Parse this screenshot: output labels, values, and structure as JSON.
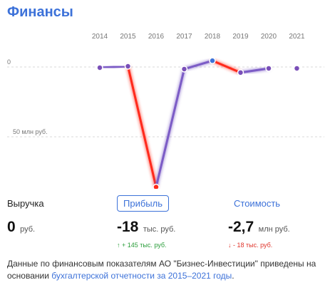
{
  "header": {
    "title": "Финансы"
  },
  "chart_data": {
    "type": "line",
    "x": [
      "2014",
      "2015",
      "2016",
      "2017",
      "2018",
      "2019",
      "2020",
      "2021"
    ],
    "series": [
      {
        "values": [
          -0.5,
          0.5,
          -86,
          -1.5,
          4.5,
          -4,
          -1,
          -1
        ]
      }
    ],
    "y_tick_labels": [
      "0",
      "50 млн руб."
    ],
    "ylim": [
      -90,
      10
    ],
    "grid": true,
    "colors": {
      "marker": "#7a4fb8",
      "decline": "#ff2a1a",
      "growth": "#7b5cc6",
      "top_marker": "#3d72d9"
    }
  },
  "metrics": {
    "revenue": {
      "label": "Выручка",
      "value": "0",
      "unit": "руб."
    },
    "profit": {
      "label": "Прибыль",
      "value": "-18",
      "unit": "тыс. руб.",
      "delta": "↑ + 145 тыс. руб."
    },
    "cost": {
      "label": "Стоимость",
      "value": "-2,7",
      "unit": "млн руб.",
      "delta": "↓ - 18 тыс. руб."
    }
  },
  "footer": {
    "text": "Данные по финансовым показателям АО \"Бизнес-Инвестиции\" приведены на основании ",
    "link": "бухгалтерской отчетности за 2015–2021 годы",
    "end": "."
  }
}
